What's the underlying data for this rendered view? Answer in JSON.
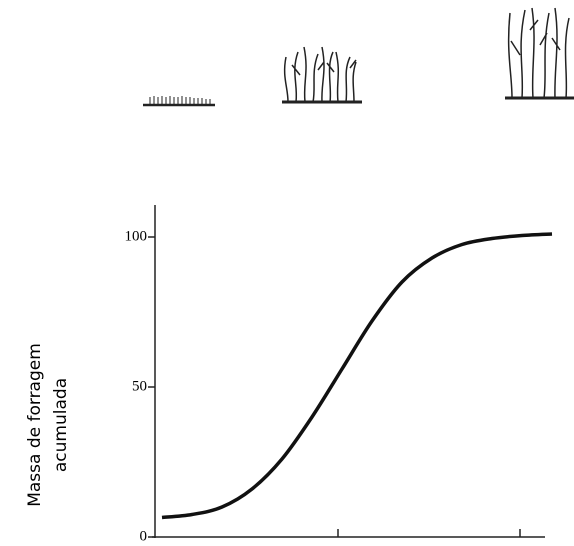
{
  "chart_data": {
    "type": "line",
    "y_label": [
      "Massa de forragem",
      "acumulada"
    ],
    "categories": [
      null,
      null,
      null,
      null,
      null,
      null,
      null,
      null,
      null,
      null,
      null,
      null,
      null,
      null
    ],
    "values": [
      6.5,
      7.5,
      10,
      16,
      26,
      40,
      56,
      72,
      85,
      93,
      97.5,
      99.5,
      100.5,
      101
    ],
    "color": "#111111",
    "ylim": [
      0,
      110
    ],
    "yticks": [
      0,
      50,
      100
    ]
  }
}
